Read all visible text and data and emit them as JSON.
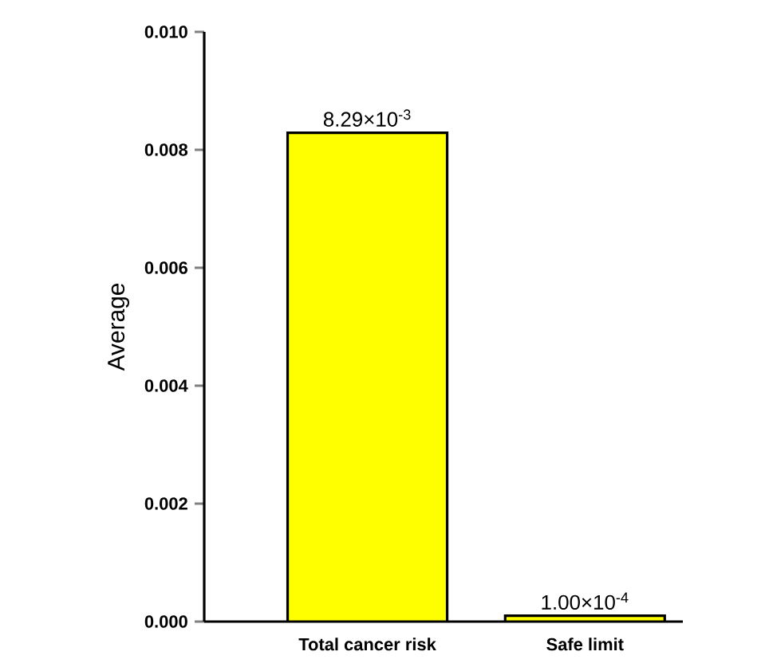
{
  "chart_data": {
    "type": "bar",
    "ylabel": "Average",
    "categories": [
      "Total cancer risk",
      "Safe limit"
    ],
    "values": [
      0.00829,
      0.0001
    ],
    "value_labels": [
      "8.29×10$^{-3}$",
      "1.00×10$^{-4}$"
    ],
    "color": "#ffff00",
    "ylim": [
      0,
      0.01
    ],
    "yticks": [
      {
        "value": 0,
        "label": "0.000"
      },
      {
        "value": 0.002,
        "label": "0.002"
      },
      {
        "value": 0.004,
        "label": "0.004"
      },
      {
        "value": 0.006,
        "label": "0.006"
      },
      {
        "value": 0.008,
        "label": "0.008"
      },
      {
        "value": 0.01,
        "label": "0.010"
      }
    ],
    "grid": false
  }
}
